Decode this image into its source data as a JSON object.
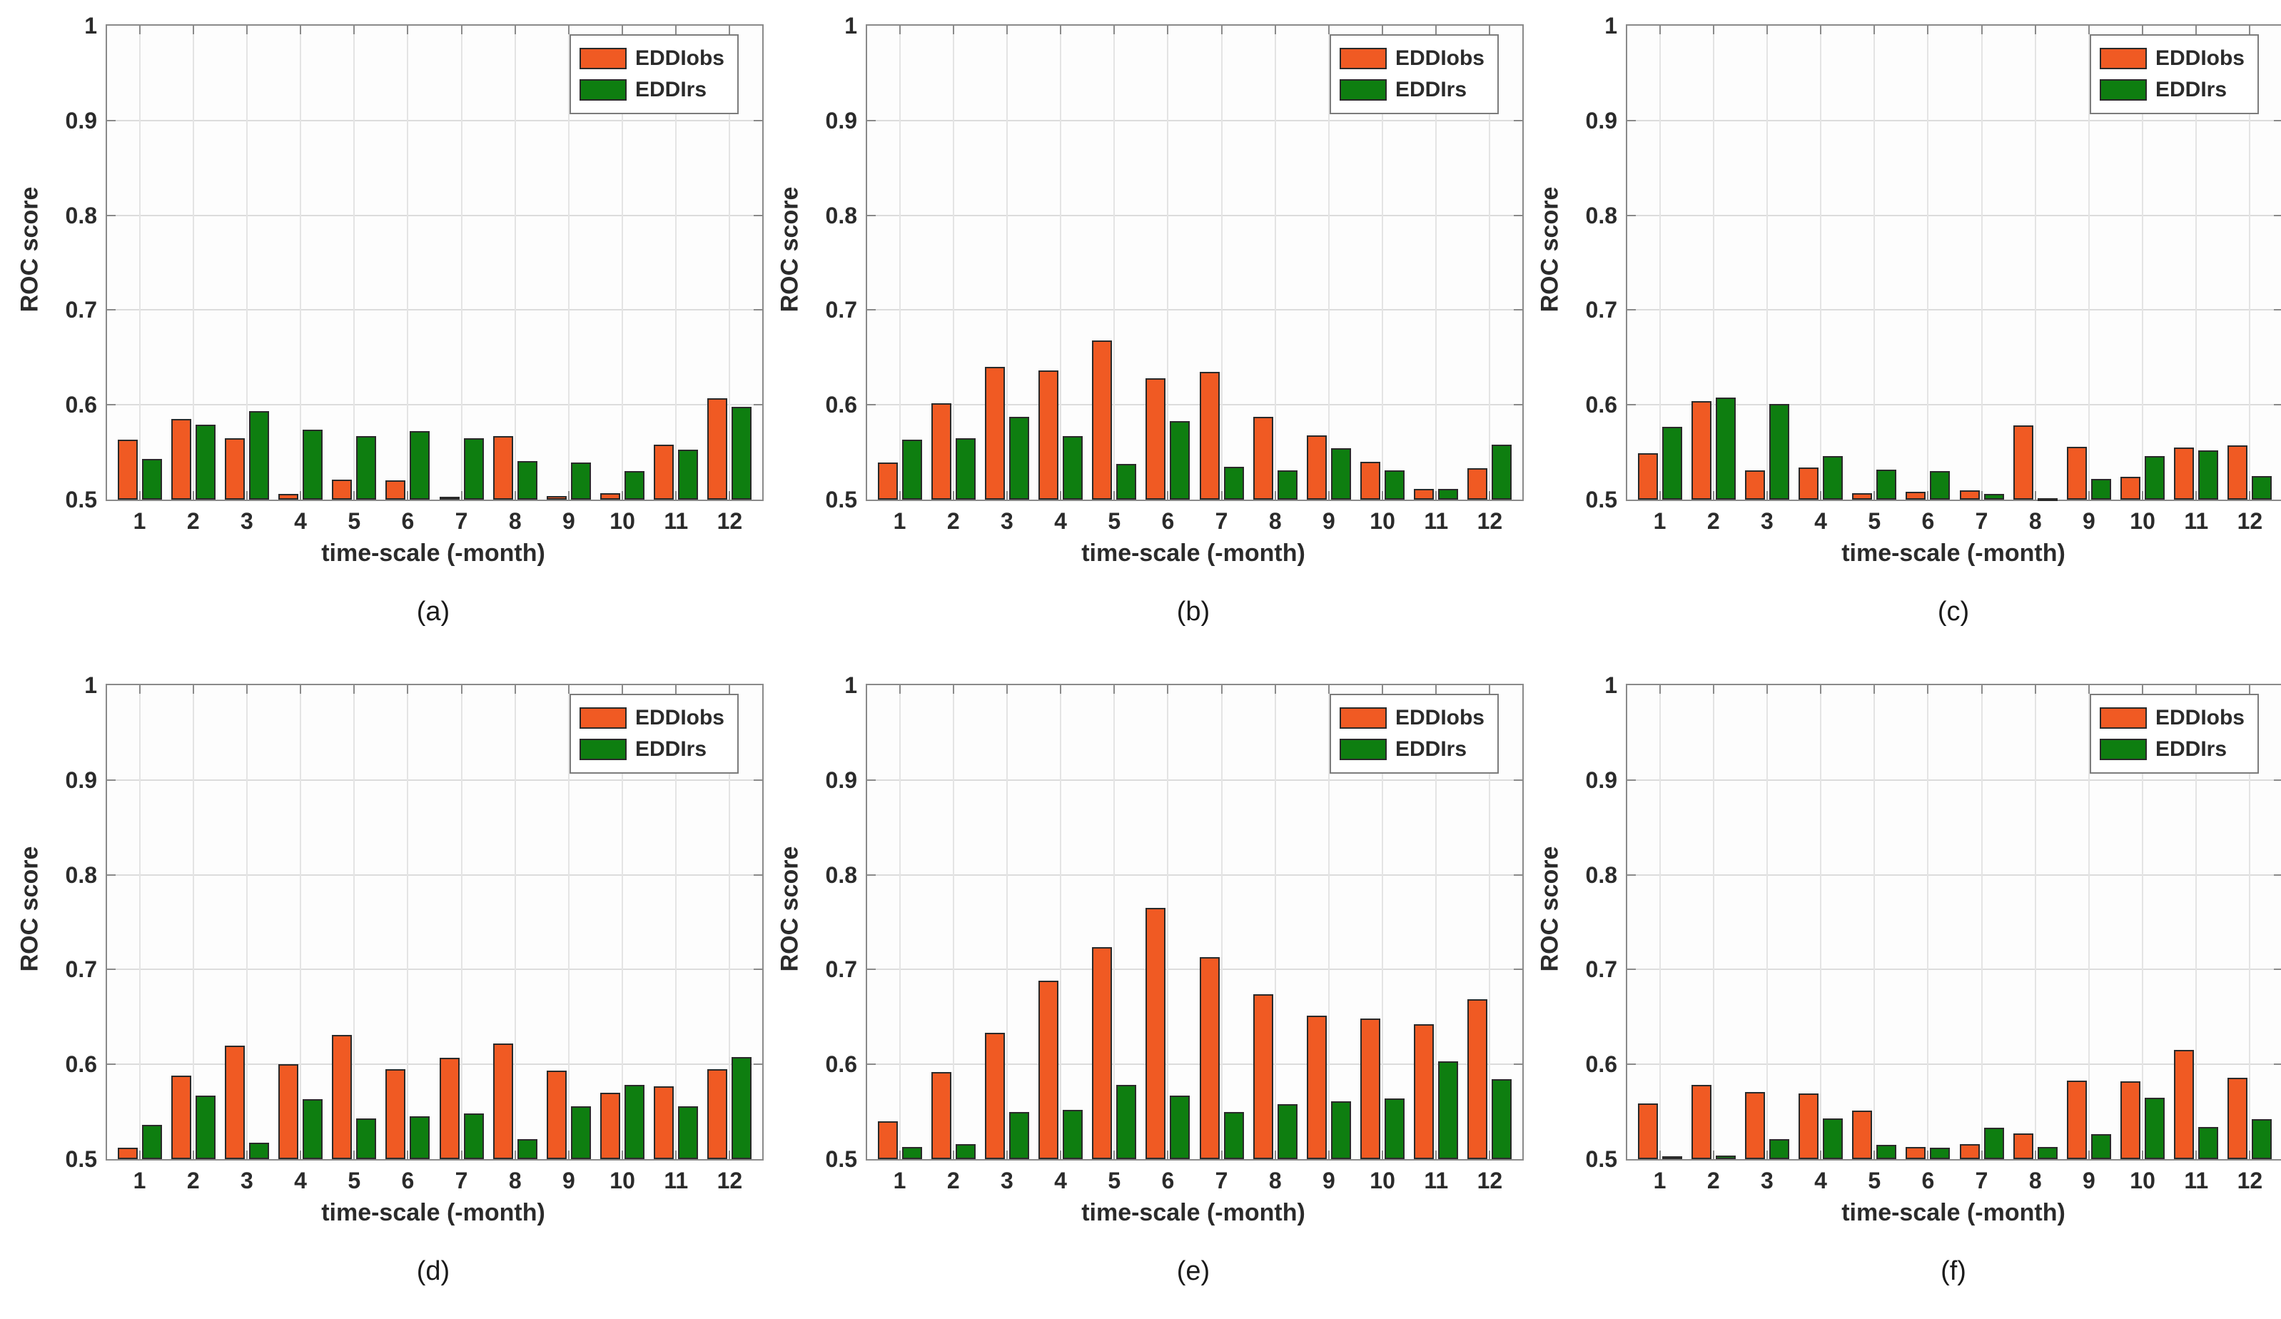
{
  "figure": {
    "ylabel": "ROC score",
    "xlabel": "time-scale (-month)",
    "background": "#ffffff",
    "frame_color": "#8a8a8a",
    "grid_color": "#dcdcdc"
  },
  "chart_data": [
    {
      "type": "bar",
      "label": "(a)",
      "title": "",
      "xlabel": "time-scale (-month)",
      "ylabel": "ROC score",
      "ylim": [
        0.5,
        1
      ],
      "yticks": [
        0.5,
        0.6,
        0.7,
        0.8,
        0.9,
        1
      ],
      "grid": true,
      "legend_position": "top-right",
      "categories": [
        1,
        2,
        3,
        4,
        5,
        6,
        7,
        8,
        9,
        10,
        11,
        12
      ],
      "series": [
        {
          "name": "EDDIobs",
          "color": "#f05a23",
          "values": [
            0.563,
            0.585,
            0.565,
            0.506,
            0.521,
            0.52,
            0.503,
            0.567,
            0.504,
            0.507,
            0.558,
            0.607
          ]
        },
        {
          "name": "EDDIrs",
          "color": "#0e7e10",
          "values": [
            0.543,
            0.579,
            0.593,
            0.574,
            0.567,
            0.572,
            0.565,
            0.541,
            0.539,
            0.53,
            0.553,
            0.598
          ]
        }
      ]
    },
    {
      "type": "bar",
      "label": "(b)",
      "title": "",
      "xlabel": "time-scale (-month)",
      "ylabel": "ROC score",
      "ylim": [
        0.5,
        1
      ],
      "yticks": [
        0.5,
        0.6,
        0.7,
        0.8,
        0.9,
        1
      ],
      "grid": true,
      "legend_position": "top-right",
      "categories": [
        1,
        2,
        3,
        4,
        5,
        6,
        7,
        8,
        9,
        10,
        11,
        12
      ],
      "series": [
        {
          "name": "EDDIobs",
          "color": "#f05a23",
          "values": [
            0.539,
            0.602,
            0.64,
            0.636,
            0.668,
            0.628,
            0.635,
            0.587,
            0.568,
            0.54,
            0.511,
            0.533
          ]
        },
        {
          "name": "EDDIrs",
          "color": "#0e7e10",
          "values": [
            0.563,
            0.565,
            0.587,
            0.567,
            0.538,
            0.583,
            0.535,
            0.531,
            0.554,
            0.531,
            0.511,
            0.558
          ]
        }
      ]
    },
    {
      "type": "bar",
      "label": "(c)",
      "title": "",
      "xlabel": "time-scale (-month)",
      "ylabel": "ROC score",
      "ylim": [
        0.5,
        1
      ],
      "yticks": [
        0.5,
        0.6,
        0.7,
        0.8,
        0.9,
        1
      ],
      "grid": true,
      "legend_position": "top-right",
      "categories": [
        1,
        2,
        3,
        4,
        5,
        6,
        7,
        8,
        9,
        10,
        11,
        12
      ],
      "series": [
        {
          "name": "EDDIobs",
          "color": "#f05a23",
          "values": [
            0.549,
            0.604,
            0.531,
            0.534,
            0.507,
            0.508,
            0.51,
            0.578,
            0.556,
            0.524,
            0.555,
            0.557
          ]
        },
        {
          "name": "EDDIrs",
          "color": "#0e7e10",
          "values": [
            0.577,
            0.608,
            0.601,
            0.546,
            0.532,
            0.53,
            0.506,
            0.501,
            0.522,
            0.546,
            0.552,
            0.525
          ]
        }
      ]
    },
    {
      "type": "bar",
      "label": "(d)",
      "title": "",
      "xlabel": "time-scale (-month)",
      "ylabel": "ROC score",
      "ylim": [
        0.5,
        1
      ],
      "yticks": [
        0.5,
        0.6,
        0.7,
        0.8,
        0.9,
        1
      ],
      "grid": true,
      "legend_position": "top-right",
      "categories": [
        1,
        2,
        3,
        4,
        5,
        6,
        7,
        8,
        9,
        10,
        11,
        12
      ],
      "series": [
        {
          "name": "EDDIobs",
          "color": "#f05a23",
          "values": [
            0.512,
            0.588,
            0.62,
            0.6,
            0.631,
            0.595,
            0.607,
            0.622,
            0.593,
            0.57,
            0.577,
            0.595
          ]
        },
        {
          "name": "EDDIrs",
          "color": "#0e7e10",
          "values": [
            0.536,
            0.567,
            0.517,
            0.563,
            0.543,
            0.545,
            0.548,
            0.521,
            0.556,
            0.578,
            0.556,
            0.608
          ]
        }
      ]
    },
    {
      "type": "bar",
      "label": "(e)",
      "title": "",
      "xlabel": "time-scale (-month)",
      "ylabel": "ROC score",
      "ylim": [
        0.5,
        1
      ],
      "yticks": [
        0.5,
        0.6,
        0.7,
        0.8,
        0.9,
        1
      ],
      "grid": true,
      "legend_position": "top-right",
      "categories": [
        1,
        2,
        3,
        4,
        5,
        6,
        7,
        8,
        9,
        10,
        11,
        12
      ],
      "series": [
        {
          "name": "EDDIobs",
          "color": "#f05a23",
          "values": [
            0.54,
            0.592,
            0.633,
            0.688,
            0.724,
            0.765,
            0.713,
            0.674,
            0.651,
            0.648,
            0.642,
            0.669
          ]
        },
        {
          "name": "EDDIrs",
          "color": "#0e7e10",
          "values": [
            0.513,
            0.516,
            0.55,
            0.552,
            0.578,
            0.567,
            0.55,
            0.558,
            0.561,
            0.564,
            0.603,
            0.584
          ]
        }
      ]
    },
    {
      "type": "bar",
      "label": "(f)",
      "title": "",
      "xlabel": "time-scale (-month)",
      "ylabel": "ROC score",
      "ylim": [
        0.5,
        1
      ],
      "yticks": [
        0.5,
        0.6,
        0.7,
        0.8,
        0.9,
        1
      ],
      "grid": true,
      "legend_position": "top-right",
      "categories": [
        1,
        2,
        3,
        4,
        5,
        6,
        7,
        8,
        9,
        10,
        11,
        12
      ],
      "series": [
        {
          "name": "EDDIobs",
          "color": "#f05a23",
          "values": [
            0.559,
            0.578,
            0.571,
            0.569,
            0.551,
            0.513,
            0.516,
            0.527,
            0.583,
            0.582,
            0.615,
            0.586
          ]
        },
        {
          "name": "EDDIrs",
          "color": "#0e7e10",
          "values": [
            0.503,
            0.504,
            0.521,
            0.543,
            0.515,
            0.512,
            0.533,
            0.513,
            0.526,
            0.565,
            0.534,
            0.542
          ]
        }
      ]
    }
  ]
}
